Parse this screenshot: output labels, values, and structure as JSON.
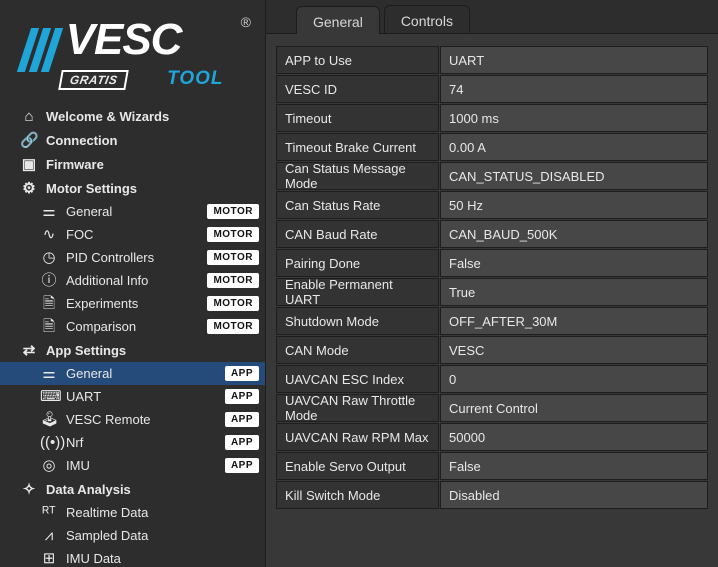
{
  "logo": {
    "text": "VESC",
    "gratis": "GRATIS",
    "tool": "TOOL",
    "reg": "®"
  },
  "badges": {
    "motor": "MOTOR",
    "app": "APP"
  },
  "nav": {
    "welcome": "Welcome & Wizards",
    "connection": "Connection",
    "firmware": "Firmware",
    "motor_settings": "Motor Settings",
    "motor": {
      "general": "General",
      "foc": "FOC",
      "pid": "PID Controllers",
      "add": "Additional Info",
      "exp": "Experiments",
      "comp": "Comparison"
    },
    "app_settings": "App Settings",
    "app": {
      "general": "General",
      "uart": "UART",
      "remote": "VESC Remote",
      "nrf": "Nrf",
      "imu": "IMU"
    },
    "data_analysis": "Data Analysis",
    "data": {
      "rt": "Realtime Data",
      "sampled": "Sampled Data",
      "imu": "IMU Data"
    }
  },
  "tabs": {
    "general": "General",
    "controls": "Controls"
  },
  "params": [
    {
      "label": "APP to Use",
      "val": "UART"
    },
    {
      "label": "VESC ID",
      "val": "74"
    },
    {
      "label": "Timeout",
      "val": "1000 ms"
    },
    {
      "label": "Timeout Brake Current",
      "val": "0.00 A"
    },
    {
      "label": "Can Status Message Mode",
      "val": "CAN_STATUS_DISABLED"
    },
    {
      "label": "Can Status Rate",
      "val": "50 Hz"
    },
    {
      "label": "CAN Baud Rate",
      "val": "CAN_BAUD_500K"
    },
    {
      "label": "Pairing Done",
      "val": "False"
    },
    {
      "label": "Enable Permanent UART",
      "val": "True"
    },
    {
      "label": "Shutdown Mode",
      "val": "OFF_AFTER_30M"
    },
    {
      "label": "CAN Mode",
      "val": "VESC"
    },
    {
      "label": "UAVCAN ESC Index",
      "val": "0"
    },
    {
      "label": "UAVCAN Raw Throttle Mode",
      "val": "Current Control"
    },
    {
      "label": "UAVCAN Raw RPM Max",
      "val": "50000"
    },
    {
      "label": "Enable Servo Output",
      "val": "False"
    },
    {
      "label": "Kill Switch Mode",
      "val": "Disabled"
    }
  ]
}
